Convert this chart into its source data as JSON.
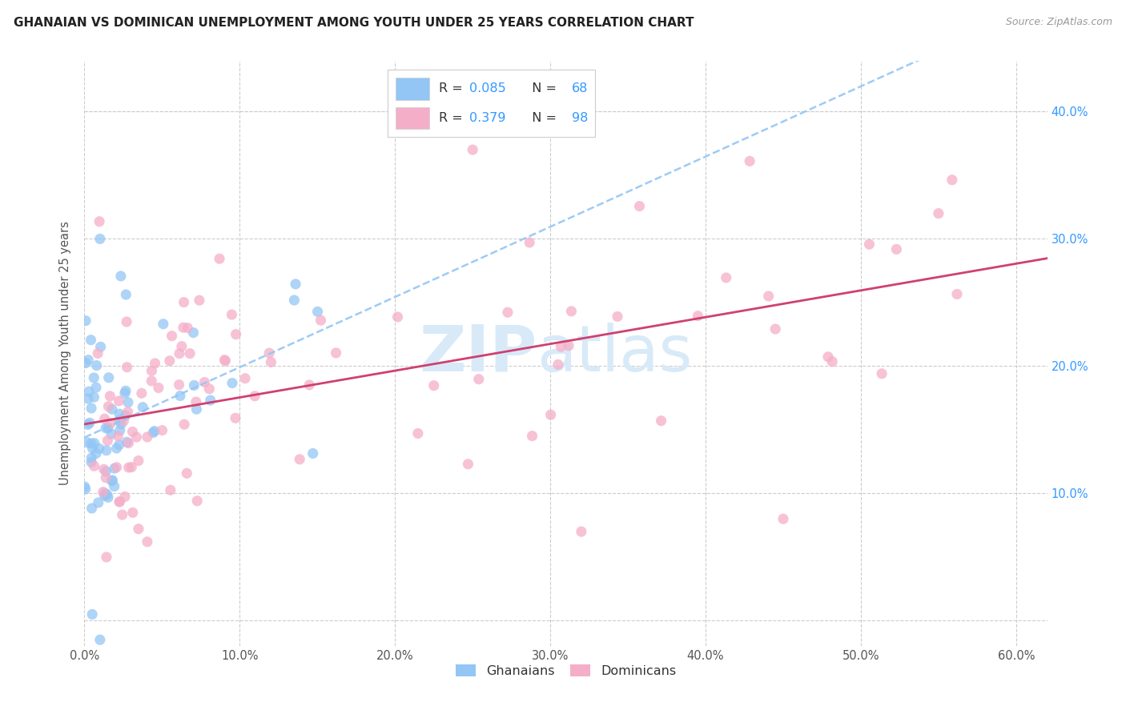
{
  "title": "GHANAIAN VS DOMINICAN UNEMPLOYMENT AMONG YOUTH UNDER 25 YEARS CORRELATION CHART",
  "source": "Source: ZipAtlas.com",
  "ylabel": "Unemployment Among Youth under 25 years",
  "xlim": [
    0.0,
    0.62
  ],
  "ylim": [
    -0.02,
    0.44
  ],
  "x_ticks": [
    0.0,
    0.1,
    0.2,
    0.3,
    0.4,
    0.5,
    0.6
  ],
  "y_ticks": [
    0.1,
    0.2,
    0.3,
    0.4
  ],
  "ghanaian_color": "#93c6f5",
  "dominican_color": "#f5aec8",
  "trendline_ghanaian_color": "#93c6f5",
  "trendline_dominican_color": "#d04070",
  "background_color": "#ffffff",
  "watermark_zip": "ZIP",
  "watermark_atlas": "atlas",
  "gh_seed": 12,
  "dom_seed": 34,
  "legend_gh_R": "0.085",
  "legend_gh_N": "68",
  "legend_dom_R": "0.379",
  "legend_dom_N": "98"
}
